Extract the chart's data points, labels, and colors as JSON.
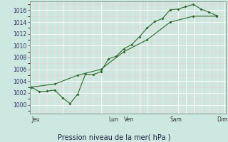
{
  "bg_color": "#cce8e0",
  "plot_bg_color": "#cce8e0",
  "grid_color_major": "#ffffff",
  "grid_color_minor": "#e8d0d0",
  "line_color": "#2d6b2d",
  "marker_color": "#2d6b2d",
  "title": "Pression niveau de la mer( hPa )",
  "ylim": [
    998.5,
    1017.5
  ],
  "yticks": [
    1000,
    1002,
    1004,
    1006,
    1008,
    1010,
    1012,
    1014,
    1016
  ],
  "day_labels": [
    "Jeu",
    "Lun",
    "Ven",
    "Sam",
    "Dim"
  ],
  "day_positions": [
    0.0,
    4.167,
    5.0,
    7.5,
    10.0
  ],
  "xlim": [
    -0.1,
    10.5
  ],
  "series1_x": [
    0.0,
    0.42,
    0.83,
    1.25,
    1.67,
    2.08,
    2.5,
    2.92,
    3.33,
    3.75,
    4.17,
    4.58,
    5.0,
    5.42,
    5.83,
    6.25,
    6.67,
    7.08,
    7.5,
    7.92,
    8.33,
    8.75,
    9.17,
    9.58,
    10.0
  ],
  "series1_y": [
    1003,
    1002.2,
    1002.3,
    1002.5,
    1001.2,
    1000.2,
    1001.8,
    1005.2,
    1005.1,
    1005.6,
    1007.8,
    1008.2,
    1009.5,
    1010.2,
    1011.5,
    1013.0,
    1014.1,
    1014.6,
    1016.1,
    1016.2,
    1016.6,
    1017.0,
    1016.2,
    1015.7,
    1015.1
  ],
  "series2_x": [
    0.0,
    1.25,
    2.5,
    3.75,
    5.0,
    6.25,
    7.5,
    8.75,
    10.0
  ],
  "series2_y": [
    1003,
    1003.5,
    1005.0,
    1006.0,
    1009.0,
    1011.0,
    1014.0,
    1015.0,
    1015.0
  ],
  "title_fontsize": 7,
  "tick_fontsize": 5.5,
  "day_fontsize": 5.5
}
